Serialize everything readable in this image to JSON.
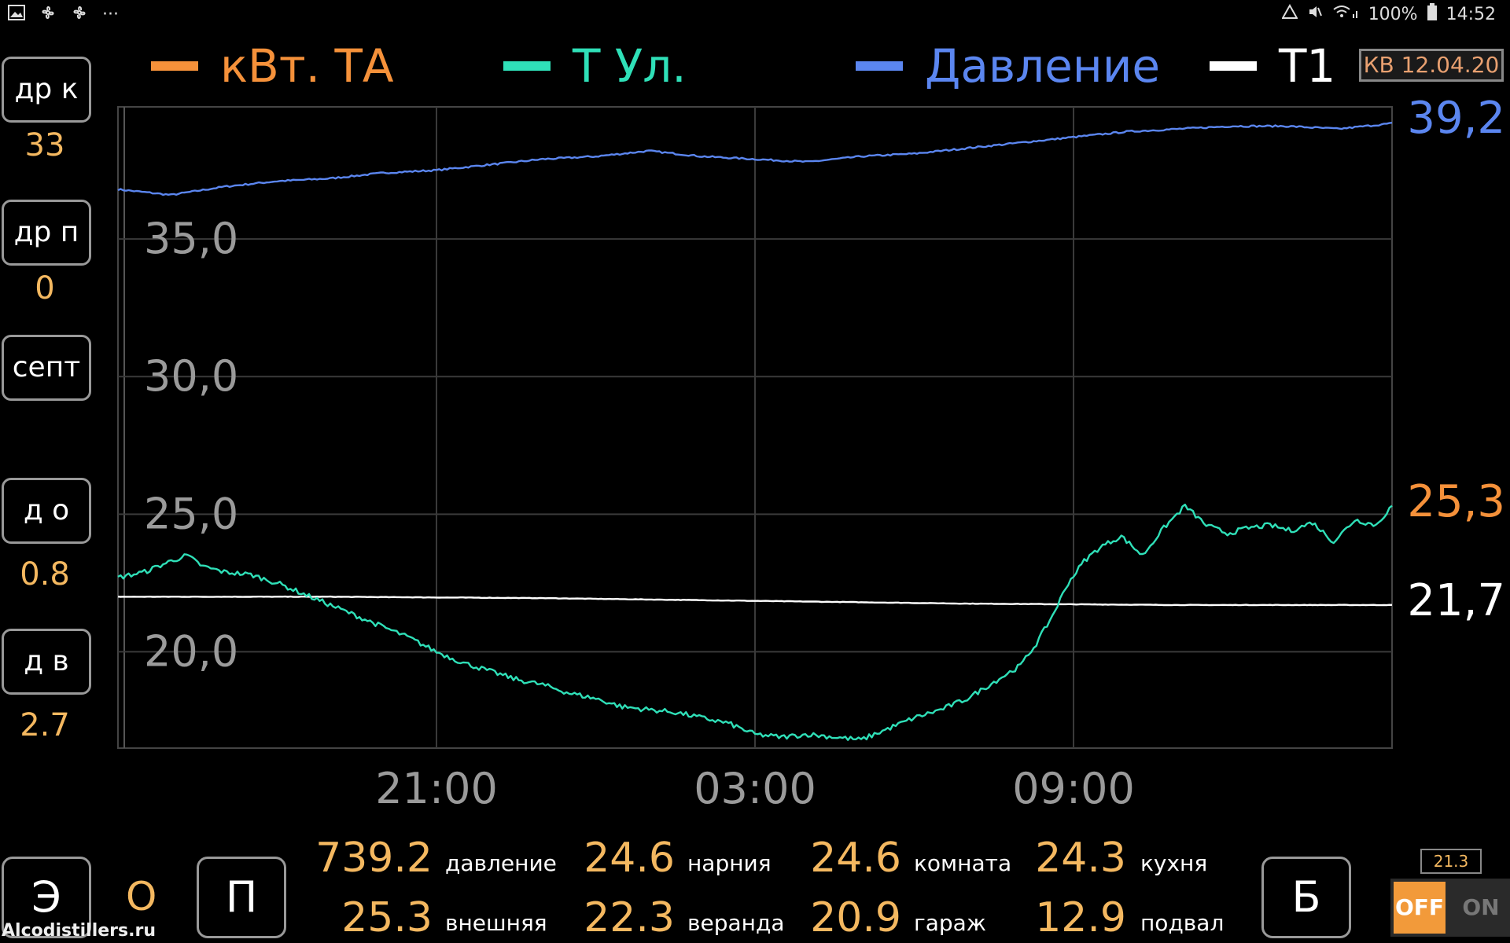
{
  "status_bar": {
    "icons": [
      "image-icon",
      "fan-icon",
      "fan-icon",
      "more-icon"
    ],
    "more": "···",
    "battery": "100%",
    "time": "14:52"
  },
  "legend": [
    {
      "label": "кВт. ТА",
      "color": "#f5913a"
    },
    {
      "label": "Т Ул.",
      "color": "#2fe0b8"
    },
    {
      "label": "Давление",
      "color": "#5b86f0"
    },
    {
      "label": "Т1",
      "color": "#ffffff"
    }
  ],
  "date_badge": "КВ  12.04.20",
  "left_panel": [
    {
      "label": "др к",
      "value": "33"
    },
    {
      "label": "др п",
      "value": "0"
    },
    {
      "label": "септ",
      "value": ""
    },
    {
      "label": "д о",
      "value": "0.8"
    },
    {
      "label": "д в",
      "value": "2.7"
    }
  ],
  "right_values": {
    "pressure": "39,2",
    "outdoor": "25,3",
    "t1": "21,7"
  },
  "chart_data": {
    "type": "line",
    "y_ticks": [
      "35,0",
      "30,0",
      "25,0",
      "20,0"
    ],
    "y_tick_values": [
      35,
      30,
      25,
      20
    ],
    "x_ticks": [
      "21:00",
      "03:00",
      "09:00"
    ],
    "x_tick_hours": [
      6,
      12,
      18
    ],
    "x_range_hours": [
      0,
      24
    ],
    "y_range": [
      16.5,
      39.8
    ],
    "grid": true,
    "series": [
      {
        "name": "Давление",
        "color": "#5b86f0",
        "x": [
          0,
          1,
          2,
          3,
          4,
          5,
          6,
          7,
          8,
          9,
          10,
          11,
          12,
          13,
          14,
          15,
          16,
          17,
          18,
          19,
          20,
          21,
          22,
          23,
          24
        ],
        "y": [
          36.8,
          36.6,
          36.9,
          37.1,
          37.2,
          37.4,
          37.5,
          37.7,
          37.9,
          38.0,
          38.2,
          38.0,
          37.9,
          37.8,
          38.0,
          38.1,
          38.3,
          38.5,
          38.7,
          38.9,
          39.0,
          39.1,
          39.1,
          39.0,
          39.2
        ]
      },
      {
        "name": "Т1",
        "color": "#ffffff",
        "x": [
          0,
          4,
          8,
          12,
          16,
          20,
          24
        ],
        "y": [
          22.0,
          22.0,
          21.95,
          21.85,
          21.75,
          21.7,
          21.7
        ]
      },
      {
        "name": "Т Ул.",
        "color": "#2fe0b8",
        "x": [
          0,
          0.5,
          1,
          1.3,
          1.6,
          2.0,
          2.5,
          3.0,
          3.5,
          4.0,
          4.5,
          5.0,
          5.5,
          6.0,
          6.5,
          7.0,
          7.5,
          8.0,
          8.5,
          9.0,
          9.5,
          10.0,
          10.5,
          11.0,
          11.5,
          12.0,
          12.5,
          13.0,
          13.5,
          14.0,
          14.5,
          15.0,
          15.5,
          16.0,
          16.5,
          17.0,
          17.3,
          17.6,
          17.9,
          18.2,
          18.5,
          18.9,
          19.3,
          19.7,
          20.1,
          20.5,
          20.9,
          21.3,
          21.7,
          22.1,
          22.5,
          22.9,
          23.3,
          23.7,
          24.0
        ],
        "y": [
          22.7,
          22.9,
          23.3,
          23.5,
          23.1,
          22.9,
          22.8,
          22.5,
          22.1,
          21.7,
          21.3,
          20.9,
          20.5,
          20.0,
          19.6,
          19.3,
          19.0,
          18.8,
          18.5,
          18.3,
          18.0,
          17.9,
          17.8,
          17.6,
          17.4,
          17.0,
          16.9,
          17.0,
          16.9,
          16.8,
          17.2,
          17.6,
          17.9,
          18.3,
          18.9,
          19.5,
          20.3,
          21.3,
          22.5,
          23.3,
          23.8,
          24.2,
          23.5,
          24.5,
          25.3,
          24.6,
          24.3,
          24.5,
          24.6,
          24.4,
          24.7,
          24.0,
          24.8,
          24.6,
          25.3
        ]
      }
    ]
  },
  "bottom": {
    "btn_e": "Э",
    "mode_value": "О",
    "btn_p": "П",
    "btn_b": "Б",
    "sensors_row1": [
      {
        "value": "739.2",
        "name": "давление"
      },
      {
        "value": "24.6",
        "name": "нарния"
      },
      {
        "value": "24.6",
        "name": "комната"
      },
      {
        "value": "24.3",
        "name": "кухня"
      }
    ],
    "sensors_row2": [
      {
        "value": "25.3",
        "name": "внешняя"
      },
      {
        "value": "22.3",
        "name": "веранда"
      },
      {
        "value": "20.9",
        "name": "гараж"
      },
      {
        "value": "12.9",
        "name": "подвал"
      }
    ],
    "mini_badge": "21.3",
    "toggle_off": "OFF",
    "toggle_on": "ON"
  },
  "watermark": "Alcodistillers.ru"
}
